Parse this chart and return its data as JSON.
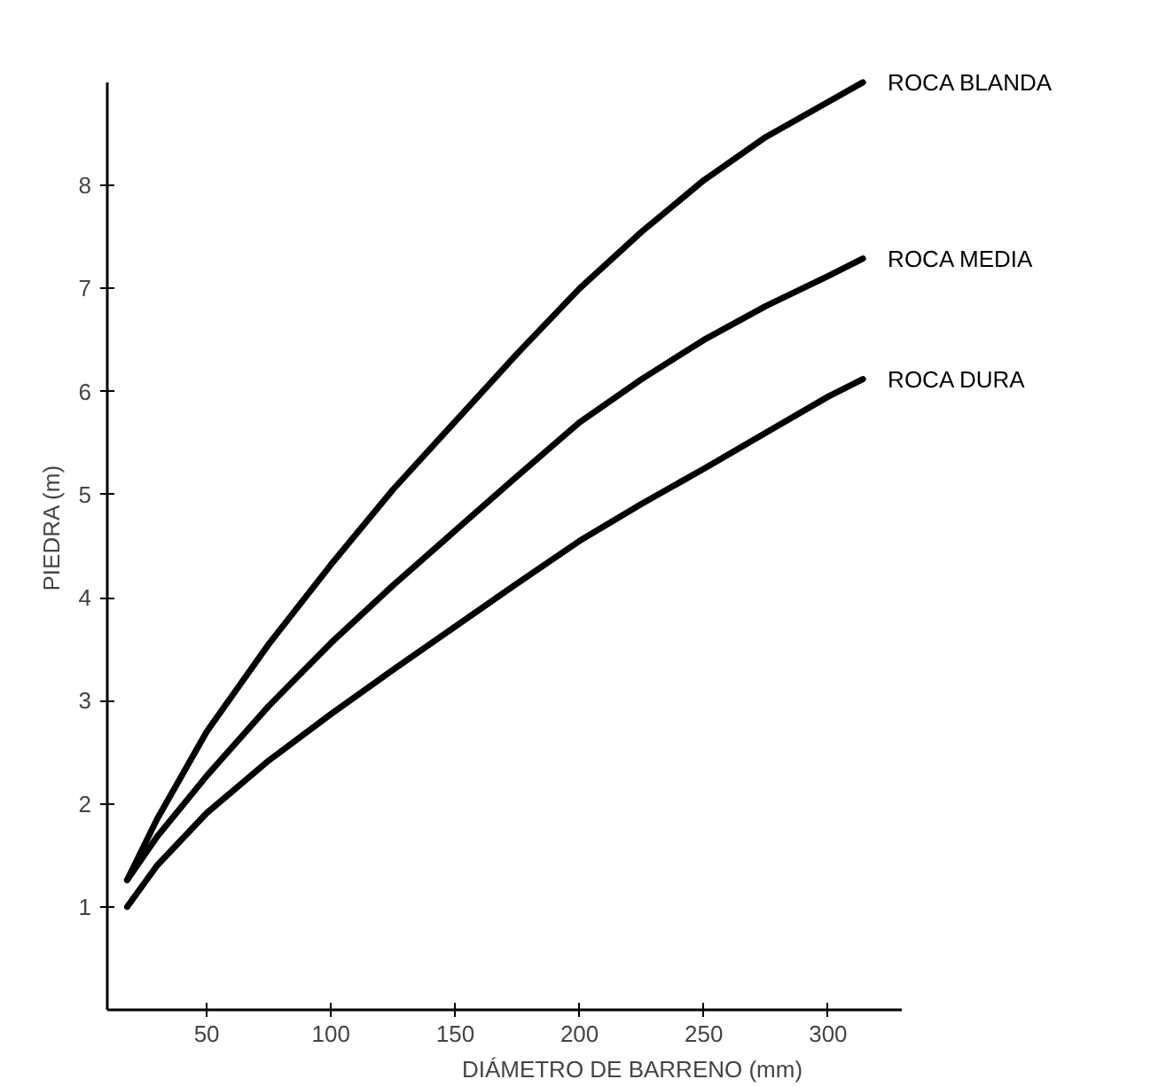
{
  "chart_data": {
    "type": "line",
    "xlabel": "DIÁMETRO DE BARRENO (mm)",
    "ylabel": "PIEDRA (m)",
    "xlim": [
      10,
      330
    ],
    "xticks": [
      50,
      100,
      150,
      200,
      250,
      300
    ],
    "ylim": [
      0,
      9
    ],
    "yticks": [
      1,
      2,
      3,
      4,
      5,
      6,
      7,
      8
    ],
    "grid": false,
    "legend": false,
    "marker": "none",
    "line_style": "solid",
    "x": [
      18,
      30,
      50,
      75,
      100,
      125,
      150,
      175,
      200,
      225,
      250,
      275,
      300,
      314
    ],
    "series": [
      {
        "name": "ROCA BLANDA",
        "color": "#000000",
        "values": [
          1.26,
          1.85,
          2.7,
          3.55,
          4.32,
          5.05,
          5.71,
          6.37,
          7.0,
          7.55,
          8.05,
          8.47,
          8.81,
          9.0
        ]
      },
      {
        "name": "ROCA MEDIA",
        "color": "#000000",
        "values": [
          1.26,
          1.68,
          2.27,
          2.95,
          3.56,
          4.12,
          4.65,
          5.18,
          5.7,
          6.12,
          6.5,
          6.83,
          7.12,
          7.29
        ]
      },
      {
        "name": "ROCA DURA",
        "color": "#000000",
        "values": [
          1.0,
          1.4,
          1.91,
          2.42,
          2.87,
          3.3,
          3.72,
          4.14,
          4.55,
          4.91,
          5.25,
          5.6,
          5.95,
          6.12
        ]
      }
    ]
  }
}
